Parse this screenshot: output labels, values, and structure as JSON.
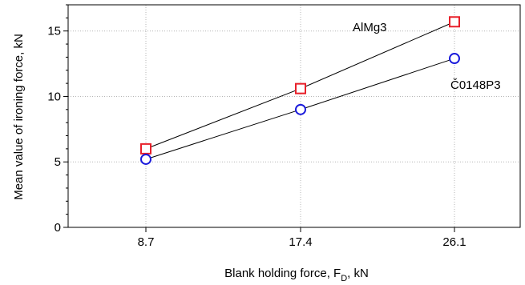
{
  "chart_data": {
    "type": "line",
    "title": "",
    "xlabel": {
      "main": "Blank holding force, F",
      "subscript": "D",
      "suffix": ", kN"
    },
    "ylabel": "Mean value of ironing force, kN",
    "categories": [
      "8.7",
      "17.4",
      "26.1"
    ],
    "yticks": [
      "0",
      "5",
      "10",
      "15"
    ],
    "ylim": [
      0,
      17
    ],
    "grid": true,
    "series": [
      {
        "name": "AlMg3",
        "values": [
          6.0,
          10.6,
          15.7
        ],
        "color": "#e8202a",
        "marker": "square"
      },
      {
        "name": "Č0148P3",
        "values": [
          5.2,
          9.0,
          12.9
        ],
        "color": "#1a1adb",
        "marker": "circle"
      }
    ]
  }
}
